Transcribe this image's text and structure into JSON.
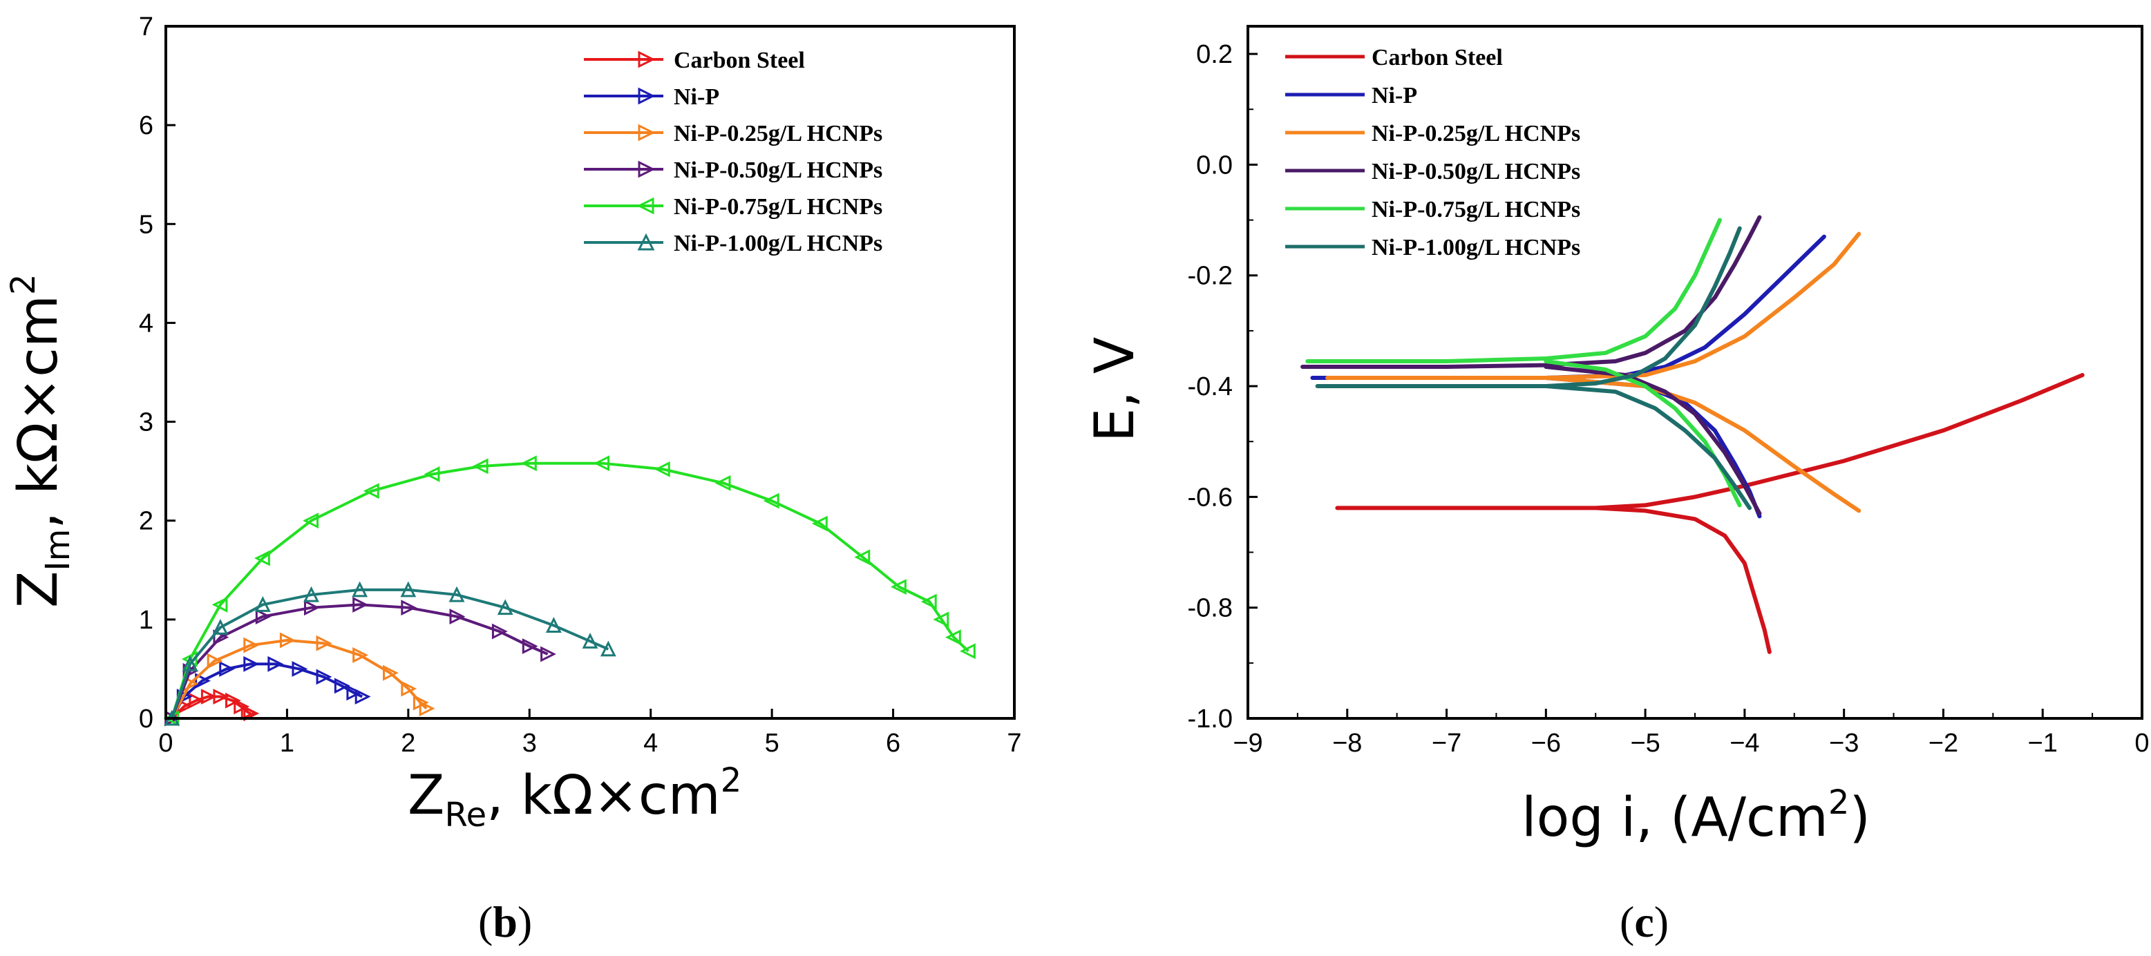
{
  "chart_data": [
    {
      "type": "line",
      "panel_label": {
        "open": "(",
        "letter": "b",
        "close": ")"
      },
      "xlabel": {
        "main": "Z",
        "sub": "Re",
        "rest": ", kΩ×cm",
        "sup": "2"
      },
      "ylabel": {
        "main": "Z",
        "sub": "Im",
        "rest": ", kΩ×cm",
        "sup": "2"
      },
      "xlim": [
        0,
        7
      ],
      "ylim": [
        0,
        7
      ],
      "xticks": [
        "0",
        "1",
        "2",
        "3",
        "4",
        "5",
        "6",
        "7"
      ],
      "yticks": [
        "0",
        "1",
        "2",
        "3",
        "4",
        "5",
        "6",
        "7"
      ],
      "legend_position": "top-right",
      "series": [
        {
          "name": "Carbon Steel",
          "color": "#e8191c",
          "marker": "right-triangle",
          "x": [
            0.05,
            0.15,
            0.25,
            0.35,
            0.45,
            0.55,
            0.62,
            0.68,
            0.7
          ],
          "y": [
            0.0,
            0.12,
            0.18,
            0.22,
            0.22,
            0.18,
            0.12,
            0.06,
            0.05
          ]
        },
        {
          "name": "Ni-P",
          "color": "#1b1bb5",
          "marker": "right-triangle",
          "x": [
            0.05,
            0.15,
            0.3,
            0.5,
            0.7,
            0.9,
            1.1,
            1.3,
            1.45,
            1.55,
            1.62
          ],
          "y": [
            0.0,
            0.22,
            0.38,
            0.5,
            0.55,
            0.55,
            0.5,
            0.42,
            0.33,
            0.26,
            0.22
          ]
        },
        {
          "name": "Ni-P-0.25g/L HCNPs",
          "color": "#f5821f",
          "marker": "right-triangle",
          "x": [
            0.05,
            0.2,
            0.4,
            0.7,
            1.0,
            1.3,
            1.6,
            1.85,
            2.0,
            2.1,
            2.15
          ],
          "y": [
            0.0,
            0.35,
            0.58,
            0.74,
            0.79,
            0.76,
            0.64,
            0.46,
            0.3,
            0.16,
            0.1
          ]
        },
        {
          "name": "Ni-P-0.50g/L HCNPs",
          "color": "#5c1a7a",
          "marker": "right-triangle",
          "x": [
            0.05,
            0.2,
            0.45,
            0.8,
            1.2,
            1.6,
            2.0,
            2.4,
            2.75,
            3.0,
            3.15
          ],
          "y": [
            0.0,
            0.48,
            0.82,
            1.03,
            1.12,
            1.15,
            1.12,
            1.03,
            0.88,
            0.73,
            0.65
          ]
        },
        {
          "name": "Ni-P-0.75g/L HCNPs",
          "color": "#22e022",
          "marker": "left-triangle",
          "x": [
            0.05,
            0.2,
            0.45,
            0.8,
            1.2,
            1.7,
            2.2,
            2.6,
            3.0,
            3.6,
            4.1,
            4.6,
            5.0,
            5.4,
            5.75,
            6.05,
            6.3,
            6.4,
            6.5,
            6.62
          ],
          "y": [
            0.0,
            0.6,
            1.15,
            1.62,
            2.0,
            2.3,
            2.47,
            2.55,
            2.58,
            2.58,
            2.52,
            2.38,
            2.2,
            1.97,
            1.63,
            1.33,
            1.18,
            1.0,
            0.82,
            0.68
          ]
        },
        {
          "name": "Ni-P-1.00g/L HCNPs",
          "color": "#1e7a78",
          "marker": "up-triangle",
          "x": [
            0.05,
            0.2,
            0.45,
            0.8,
            1.2,
            1.6,
            2.0,
            2.4,
            2.8,
            3.2,
            3.5,
            3.65
          ],
          "y": [
            0.0,
            0.55,
            0.92,
            1.15,
            1.25,
            1.3,
            1.3,
            1.25,
            1.12,
            0.94,
            0.78,
            0.7
          ]
        }
      ]
    },
    {
      "type": "line",
      "panel_label": {
        "open": "(",
        "letter": "c",
        "close": ")"
      },
      "xlabel": {
        "main": "log i, (A/cm",
        "sup": "2",
        "rest": ")"
      },
      "ylabel": {
        "main": "E, V"
      },
      "xlim": [
        -9,
        0
      ],
      "ylim": [
        -1.0,
        0.25
      ],
      "xticks": [
        "−9",
        "−8",
        "−7",
        "−6",
        "−5",
        "−4",
        "−3",
        "−2",
        "−1",
        "0"
      ],
      "yticks": [
        "0.2",
        "0.0",
        "-0.2",
        "-0.4",
        "-0.6",
        "-0.8",
        "-1.0"
      ],
      "ytick_values": [
        0.2,
        0.0,
        -0.2,
        -0.4,
        -0.6,
        -0.8,
        -1.0
      ],
      "legend_position": "top-left",
      "series": [
        {
          "name": "Carbon Steel",
          "color": "#d1121a",
          "anodic": {
            "x": [
              -8.1,
              -7,
              -6,
              -5.5,
              -5.0,
              -4.5,
              -4.0,
              -3.0,
              -2.0,
              -1.2,
              -0.6
            ],
            "y": [
              -0.62,
              -0.62,
              -0.62,
              -0.62,
              -0.615,
              -0.6,
              -0.58,
              -0.535,
              -0.48,
              -0.425,
              -0.38
            ]
          },
          "cathodic": {
            "x": [
              -5.5,
              -5.0,
              -4.5,
              -4.2,
              -4.0,
              -3.9,
              -3.8,
              -3.75
            ],
            "y": [
              -0.62,
              -0.625,
              -0.64,
              -0.67,
              -0.72,
              -0.78,
              -0.84,
              -0.88
            ]
          }
        },
        {
          "name": "Ni-P",
          "color": "#1d1db3",
          "anodic": {
            "x": [
              -8.35,
              -7,
              -6,
              -5.2,
              -4.8,
              -4.4,
              -4.0,
              -3.6,
              -3.2
            ],
            "y": [
              -0.385,
              -0.385,
              -0.385,
              -0.38,
              -0.365,
              -0.33,
              -0.27,
              -0.2,
              -0.13
            ]
          },
          "cathodic": {
            "x": [
              -6.0,
              -5.0,
              -4.6,
              -4.3,
              -4.1,
              -3.95,
              -3.85
            ],
            "y": [
              -0.385,
              -0.4,
              -0.43,
              -0.48,
              -0.54,
              -0.59,
              -0.635
            ]
          }
        },
        {
          "name": "Ni-P-0.25g/L HCNPs",
          "color": "#f5841f",
          "anodic": {
            "x": [
              -8.2,
              -7,
              -6,
              -5.0,
              -4.5,
              -4.0,
              -3.5,
              -3.1,
              -2.85
            ],
            "y": [
              -0.385,
              -0.385,
              -0.385,
              -0.38,
              -0.355,
              -0.31,
              -0.24,
              -0.18,
              -0.125
            ]
          },
          "cathodic": {
            "x": [
              -6.0,
              -5.0,
              -4.5,
              -4.0,
              -3.5,
              -3.1,
              -2.85
            ],
            "y": [
              -0.385,
              -0.4,
              -0.43,
              -0.48,
              -0.545,
              -0.595,
              -0.625
            ]
          }
        },
        {
          "name": "Ni-P-0.50g/L HCNPs",
          "color": "#4a1a66",
          "anodic": {
            "x": [
              -8.45,
              -7,
              -6,
              -5.3,
              -5.0,
              -4.6,
              -4.3,
              -4.1,
              -3.95,
              -3.85
            ],
            "y": [
              -0.365,
              -0.365,
              -0.362,
              -0.355,
              -0.34,
              -0.3,
              -0.24,
              -0.18,
              -0.13,
              -0.095
            ]
          },
          "cathodic": {
            "x": [
              -6.0,
              -5.2,
              -4.8,
              -4.5,
              -4.2,
              -4.0,
              -3.85
            ],
            "y": [
              -0.365,
              -0.38,
              -0.41,
              -0.45,
              -0.52,
              -0.58,
              -0.63
            ]
          }
        },
        {
          "name": "Ni-P-0.75g/L HCNPs",
          "color": "#33dd44",
          "anodic": {
            "x": [
              -8.4,
              -7,
              -6,
              -5.4,
              -5.0,
              -4.7,
              -4.5,
              -4.35,
              -4.25
            ],
            "y": [
              -0.355,
              -0.355,
              -0.35,
              -0.34,
              -0.31,
              -0.26,
              -0.2,
              -0.14,
              -0.1
            ]
          },
          "cathodic": {
            "x": [
              -6.0,
              -5.4,
              -5.0,
              -4.7,
              -4.4,
              -4.2,
              -4.05
            ],
            "y": [
              -0.355,
              -0.37,
              -0.4,
              -0.44,
              -0.5,
              -0.56,
              -0.615
            ]
          }
        },
        {
          "name": "Ni-P-1.00g/L HCNPs",
          "color": "#1d6e6a",
          "anodic": {
            "x": [
              -8.3,
              -7,
              -6,
              -5.5,
              -5.1,
              -4.8,
              -4.5,
              -4.3,
              -4.15,
              -4.05
            ],
            "y": [
              -0.4,
              -0.4,
              -0.4,
              -0.395,
              -0.38,
              -0.35,
              -0.29,
              -0.22,
              -0.16,
              -0.115
            ]
          },
          "cathodic": {
            "x": [
              -6.0,
              -5.3,
              -4.9,
              -4.6,
              -4.3,
              -4.1,
              -3.95
            ],
            "y": [
              -0.4,
              -0.41,
              -0.44,
              -0.48,
              -0.53,
              -0.58,
              -0.62
            ]
          }
        }
      ]
    }
  ]
}
